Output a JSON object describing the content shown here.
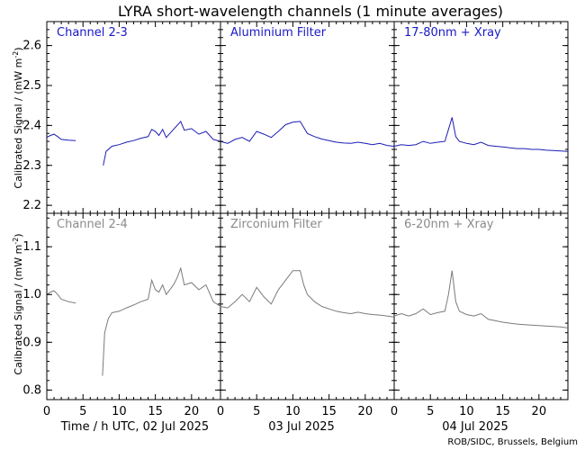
{
  "chart_data": {
    "title": "LYRA short-wavelength channels (1 minute averages)",
    "type": "line",
    "x_ticks": [
      "0",
      "5",
      "10",
      "15",
      "20"
    ],
    "day_labels": [
      "Time / h UTC, 02 Jul 2025",
      "03 Jul 2025",
      "04 Jul 2025"
    ],
    "ylabel_top": "Calibrated Signal / (mW m",
    "ylabel_bottom": "Calibrated Signal / (mW m",
    "ylabel_sup": "-2",
    "ylabel_close": ")",
    "credit": "ROB/SIDC, Brussels, Belgium",
    "colors": {
      "top": "#1c1cb4",
      "bottom": "#7a7a7a"
    },
    "top_row": {
      "ylim": [
        2.18,
        2.66
      ],
      "yticks": [
        "2.2",
        "2.3",
        "2.4",
        "2.5",
        "2.6"
      ],
      "ytick_values": [
        2.2,
        2.3,
        2.4,
        2.5,
        2.6
      ],
      "panel_labels": [
        "Channel 2-3",
        "Aluminium Filter",
        "17-80nm + Xray"
      ],
      "series": [
        {
          "day": 0,
          "points": [
            [
              0,
              2.37
            ],
            [
              0.5,
              2.375
            ],
            [
              1,
              2.378
            ],
            [
              1.5,
              2.372
            ],
            [
              2,
              2.365
            ],
            [
              3,
              2.363
            ],
            [
              4,
              2.362
            ],
            [
              7.8,
              2.3
            ],
            [
              8.2,
              2.335
            ],
            [
              9,
              2.348
            ],
            [
              10,
              2.352
            ],
            [
              11,
              2.358
            ],
            [
              12,
              2.362
            ],
            [
              13,
              2.368
            ],
            [
              14,
              2.372
            ],
            [
              14.5,
              2.39
            ],
            [
              15,
              2.385
            ],
            [
              15.5,
              2.375
            ],
            [
              16,
              2.39
            ],
            [
              16.5,
              2.37
            ],
            [
              17,
              2.38
            ],
            [
              17.5,
              2.39
            ],
            [
              18,
              2.4
            ],
            [
              18.5,
              2.41
            ],
            [
              19,
              2.388
            ],
            [
              20,
              2.392
            ],
            [
              21,
              2.378
            ],
            [
              22,
              2.385
            ],
            [
              23,
              2.365
            ],
            [
              24,
              2.36
            ]
          ]
        },
        {
          "day": 1,
          "points": [
            [
              0,
              2.36
            ],
            [
              1,
              2.355
            ],
            [
              2,
              2.365
            ],
            [
              3,
              2.37
            ],
            [
              4,
              2.36
            ],
            [
              5,
              2.385
            ],
            [
              6,
              2.378
            ],
            [
              7,
              2.37
            ],
            [
              8,
              2.385
            ],
            [
              9,
              2.402
            ],
            [
              10,
              2.408
            ],
            [
              11,
              2.41
            ],
            [
              11.5,
              2.395
            ],
            [
              12,
              2.38
            ],
            [
              13,
              2.372
            ],
            [
              14,
              2.366
            ],
            [
              15,
              2.362
            ],
            [
              16,
              2.358
            ],
            [
              17,
              2.356
            ],
            [
              18,
              2.355
            ],
            [
              19,
              2.358
            ],
            [
              20,
              2.355
            ],
            [
              21,
              2.352
            ],
            [
              22,
              2.355
            ],
            [
              23,
              2.35
            ],
            [
              24,
              2.348
            ]
          ]
        },
        {
          "day": 2,
          "points": [
            [
              0,
              2.348
            ],
            [
              1,
              2.352
            ],
            [
              2,
              2.35
            ],
            [
              3,
              2.352
            ],
            [
              4,
              2.36
            ],
            [
              5,
              2.355
            ],
            [
              6,
              2.358
            ],
            [
              7,
              2.36
            ],
            [
              7.5,
              2.39
            ],
            [
              8,
              2.42
            ],
            [
              8.5,
              2.372
            ],
            [
              9,
              2.36
            ],
            [
              10,
              2.355
            ],
            [
              11,
              2.352
            ],
            [
              12,
              2.358
            ],
            [
              13,
              2.35
            ],
            [
              14,
              2.348
            ],
            [
              15,
              2.346
            ],
            [
              16,
              2.344
            ],
            [
              17,
              2.342
            ],
            [
              18,
              2.342
            ],
            [
              19,
              2.34
            ],
            [
              20,
              2.34
            ],
            [
              21,
              2.338
            ],
            [
              22,
              2.337
            ],
            [
              23,
              2.336
            ],
            [
              24,
              2.335
            ]
          ]
        }
      ]
    },
    "bottom_row": {
      "ylim": [
        0.78,
        1.17
      ],
      "yticks": [
        "0.8",
        "0.9",
        "1.0",
        "1.1"
      ],
      "ytick_values": [
        0.8,
        0.9,
        1.0,
        1.1
      ],
      "panel_labels": [
        "Channel 2-4",
        "Zirconium Filter",
        "6-20nm + Xray"
      ],
      "series": [
        {
          "day": 0,
          "points": [
            [
              0,
              1.0
            ],
            [
              0.5,
              1.005
            ],
            [
              1,
              1.008
            ],
            [
              1.5,
              1.0
            ],
            [
              2,
              0.99
            ],
            [
              3,
              0.985
            ],
            [
              4,
              0.982
            ],
            [
              7.7,
              0.83
            ],
            [
              8,
              0.92
            ],
            [
              8.5,
              0.95
            ],
            [
              9,
              0.962
            ],
            [
              10,
              0.965
            ],
            [
              11,
              0.972
            ],
            [
              12,
              0.978
            ],
            [
              13,
              0.985
            ],
            [
              14,
              0.99
            ],
            [
              14.5,
              1.03
            ],
            [
              15,
              1.01
            ],
            [
              15.5,
              1.005
            ],
            [
              16,
              1.02
            ],
            [
              16.5,
              1.0
            ],
            [
              17,
              1.01
            ],
            [
              17.5,
              1.02
            ],
            [
              18,
              1.035
            ],
            [
              18.5,
              1.055
            ],
            [
              19,
              1.02
            ],
            [
              20,
              1.025
            ],
            [
              21,
              1.01
            ],
            [
              22,
              1.02
            ],
            [
              23,
              0.985
            ],
            [
              24,
              0.975
            ]
          ]
        },
        {
          "day": 1,
          "points": [
            [
              0,
              0.975
            ],
            [
              1,
              0.972
            ],
            [
              2,
              0.985
            ],
            [
              3,
              1.0
            ],
            [
              4,
              0.985
            ],
            [
              5,
              1.015
            ],
            [
              6,
              0.995
            ],
            [
              7,
              0.98
            ],
            [
              8,
              1.01
            ],
            [
              9,
              1.03
            ],
            [
              10,
              1.05
            ],
            [
              11,
              1.05
            ],
            [
              11.5,
              1.02
            ],
            [
              12,
              1.0
            ],
            [
              13,
              0.985
            ],
            [
              14,
              0.975
            ],
            [
              15,
              0.97
            ],
            [
              16,
              0.965
            ],
            [
              17,
              0.962
            ],
            [
              18,
              0.96
            ],
            [
              19,
              0.963
            ],
            [
              20,
              0.96
            ],
            [
              21,
              0.958
            ],
            [
              22,
              0.957
            ],
            [
              23,
              0.955
            ],
            [
              24,
              0.953
            ]
          ]
        },
        {
          "day": 2,
          "points": [
            [
              0,
              0.955
            ],
            [
              1,
              0.96
            ],
            [
              2,
              0.955
            ],
            [
              3,
              0.96
            ],
            [
              4,
              0.97
            ],
            [
              5,
              0.958
            ],
            [
              6,
              0.962
            ],
            [
              7,
              0.965
            ],
            [
              7.5,
              1.0
            ],
            [
              8,
              1.05
            ],
            [
              8.5,
              0.985
            ],
            [
              9,
              0.965
            ],
            [
              10,
              0.958
            ],
            [
              11,
              0.955
            ],
            [
              12,
              0.96
            ],
            [
              13,
              0.948
            ],
            [
              14,
              0.945
            ],
            [
              15,
              0.942
            ],
            [
              16,
              0.94
            ],
            [
              17,
              0.938
            ],
            [
              18,
              0.937
            ],
            [
              19,
              0.936
            ],
            [
              20,
              0.935
            ],
            [
              21,
              0.934
            ],
            [
              22,
              0.933
            ],
            [
              23,
              0.932
            ],
            [
              24,
              0.93
            ]
          ]
        }
      ]
    }
  }
}
